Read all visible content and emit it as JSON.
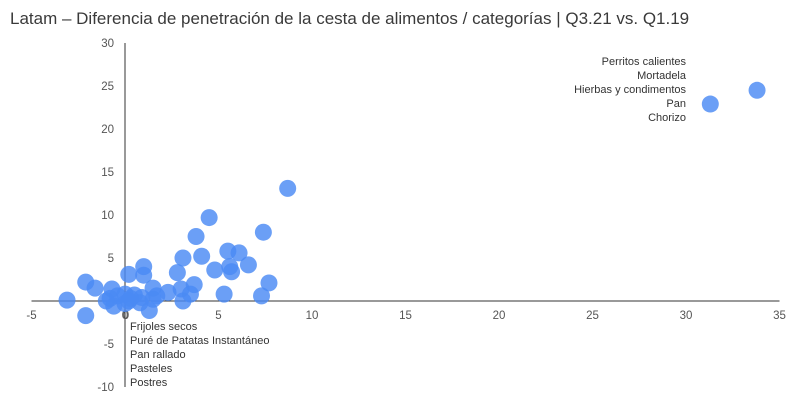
{
  "chart_data": {
    "type": "scatter",
    "title": "Latam – Diferencia de penetración de la cesta de alimentos / categorías | Q3.21 vs. Q1.19",
    "xlabel": "",
    "ylabel": "",
    "xlim": [
      -5,
      35
    ],
    "ylim": [
      -10,
      30
    ],
    "x_ticks": [
      -5,
      0,
      5,
      10,
      15,
      20,
      25,
      30,
      35
    ],
    "y_ticks": [
      -10,
      -5,
      5,
      10,
      15,
      20,
      25,
      30
    ],
    "grid": false,
    "marker_color": "#4a8af4",
    "points": [
      {
        "x": 33.8,
        "y": 24.5
      },
      {
        "x": 31.3,
        "y": 22.9
      },
      {
        "x": 8.7,
        "y": 13.1
      },
      {
        "x": 4.5,
        "y": 9.7
      },
      {
        "x": 7.4,
        "y": 8.0
      },
      {
        "x": 3.8,
        "y": 7.5
      },
      {
        "x": 5.5,
        "y": 5.8
      },
      {
        "x": 6.1,
        "y": 5.6
      },
      {
        "x": 4.1,
        "y": 5.2
      },
      {
        "x": 3.1,
        "y": 5.0
      },
      {
        "x": 6.6,
        "y": 4.2
      },
      {
        "x": 5.6,
        "y": 4.0
      },
      {
        "x": 1.0,
        "y": 4.0
      },
      {
        "x": 4.8,
        "y": 3.6
      },
      {
        "x": 5.7,
        "y": 3.4
      },
      {
        "x": 2.8,
        "y": 3.3
      },
      {
        "x": 0.2,
        "y": 3.1
      },
      {
        "x": 1.0,
        "y": 3.0
      },
      {
        "x": -2.1,
        "y": 2.2
      },
      {
        "x": 7.7,
        "y": 2.1
      },
      {
        "x": 3.7,
        "y": 1.9
      },
      {
        "x": -1.6,
        "y": 1.5
      },
      {
        "x": 1.5,
        "y": 1.5
      },
      {
        "x": 3.0,
        "y": 1.4
      },
      {
        "x": -0.7,
        "y": 1.4
      },
      {
        "x": 2.3,
        "y": 1.0
      },
      {
        "x": 3.5,
        "y": 0.8
      },
      {
        "x": 5.3,
        "y": 0.8
      },
      {
        "x": 7.3,
        "y": 0.6
      },
      {
        "x": 0.0,
        "y": 0.8
      },
      {
        "x": 0.5,
        "y": 0.7
      },
      {
        "x": 1.7,
        "y": 0.6
      },
      {
        "x": -0.4,
        "y": 0.6
      },
      {
        "x": 0.9,
        "y": 0.4
      },
      {
        "x": 0.3,
        "y": 0.3
      },
      {
        "x": -0.8,
        "y": 0.3
      },
      {
        "x": 1.5,
        "y": 0.2
      },
      {
        "x": -3.1,
        "y": 0.1
      },
      {
        "x": -1.0,
        "y": 0.0
      },
      {
        "x": 0.2,
        "y": 0.0
      },
      {
        "x": 3.1,
        "y": 0.0
      },
      {
        "x": 0.8,
        "y": -0.2
      },
      {
        "x": 0.0,
        "y": -0.3
      },
      {
        "x": -0.6,
        "y": -0.6
      },
      {
        "x": 1.3,
        "y": -1.1
      },
      {
        "x": -2.1,
        "y": -1.7
      }
    ],
    "annotations": {
      "top_right": [
        "Perritos calientes",
        "Mortadela",
        "Hierbas y condimentos",
        "Pan",
        "Chorizo"
      ],
      "bottom": [
        "Frijoles secos",
        "Puré de Patatas Instantáneo",
        "Pan rallado",
        "Pasteles",
        "Postres"
      ]
    }
  }
}
